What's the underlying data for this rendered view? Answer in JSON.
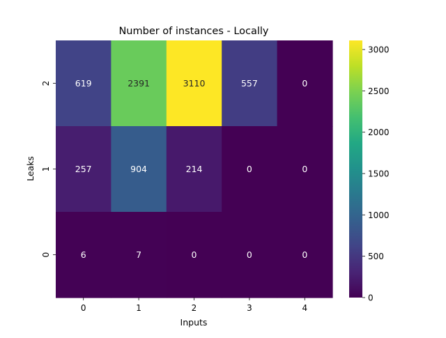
{
  "chart_data": {
    "type": "heatmap",
    "title": "Number of instances - Locally",
    "xlabel": "Inputs",
    "ylabel": "Leaks",
    "x_categories": [
      "0",
      "1",
      "2",
      "3",
      "4"
    ],
    "y_categories": [
      "2",
      "1",
      "0"
    ],
    "values": [
      [
        619,
        2391,
        3110,
        557,
        0
      ],
      [
        257,
        904,
        214,
        0,
        0
      ],
      [
        6,
        7,
        0,
        0,
        0
      ]
    ],
    "colormap": "viridis",
    "vmin": 0,
    "vmax": 3110,
    "colorbar_ticks": [
      "0",
      "500",
      "1000",
      "1500",
      "2000",
      "2500",
      "3000"
    ],
    "grid": false
  }
}
